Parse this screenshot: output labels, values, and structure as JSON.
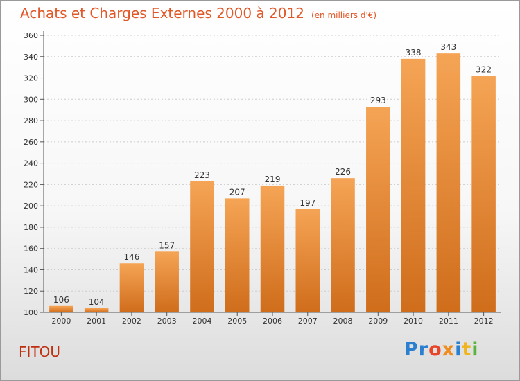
{
  "title": "Achats et Charges Externes 2000 à 2012",
  "subtitle": "(en milliers d'€)",
  "commune": "FITOU",
  "logo": {
    "p1": "Pr",
    "p2": "o",
    "p3": "x",
    "p4": "i",
    "p5": "t",
    "p6": "i"
  },
  "colors": {
    "bar_top": "#f5a455",
    "bar_bottom": "#cf6d1b",
    "title": "#e05828"
  },
  "chart_data": {
    "type": "bar",
    "categories": [
      "2000",
      "2001",
      "2002",
      "2003",
      "2004",
      "2005",
      "2006",
      "2007",
      "2008",
      "2009",
      "2010",
      "2011",
      "2012"
    ],
    "values": [
      106,
      104,
      146,
      157,
      223,
      207,
      219,
      197,
      226,
      293,
      338,
      343,
      322
    ],
    "ylim": [
      100,
      360
    ],
    "yticks": [
      100,
      120,
      140,
      160,
      180,
      200,
      220,
      240,
      260,
      280,
      300,
      320,
      340,
      360
    ],
    "grid": true,
    "title": "Achats et Charges Externes 2000 à 2012",
    "ylabel": "",
    "xlabel": ""
  }
}
